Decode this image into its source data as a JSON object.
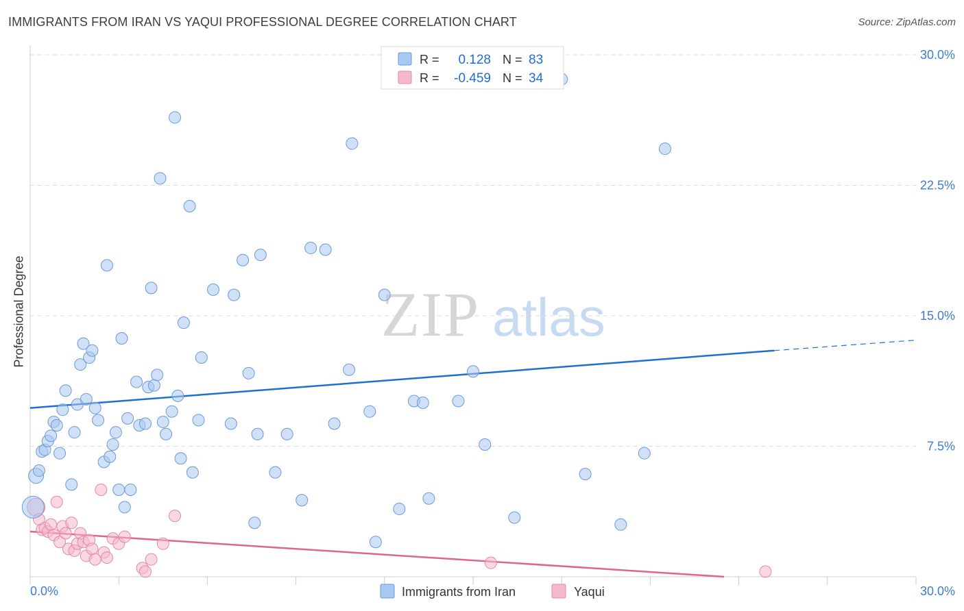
{
  "header": {
    "title": "IMMIGRANTS FROM IRAN VS YAQUI PROFESSIONAL DEGREE CORRELATION CHART",
    "source": "Source: ZipAtlas.com"
  },
  "watermark": {
    "part1": "ZIP",
    "part2": "atlas"
  },
  "colors": {
    "blue": "#1f6fd1",
    "blue_fill": "#a9c9f0",
    "pink": "#e0648c",
    "pink_fill": "#f6b8cb",
    "grid": "#dcdcdc",
    "axis_text": "#3e7bd0"
  },
  "legend": {
    "rows": [
      {
        "r_label": "R =",
        "r_value": "0.128",
        "n_label": "N =",
        "n_value": "83"
      },
      {
        "r_label": "R =",
        "r_value": "-0.459",
        "n_label": "N =",
        "n_value": "34"
      }
    ]
  },
  "bottom_legend": [
    {
      "label": "Immigrants from Iran"
    },
    {
      "label": "Yaqui"
    }
  ],
  "chart_data": {
    "type": "scatter",
    "title": "IMMIGRANTS FROM IRAN VS YAQUI PROFESSIONAL DEGREE CORRELATION CHART",
    "xlabel": "",
    "ylabel": "Professional Degree",
    "xlim": [
      0,
      30
    ],
    "ylim": [
      0,
      30
    ],
    "x_tick_labels": [
      "0.0%",
      "30.0%"
    ],
    "y_ticks": [
      7.5,
      15.0,
      22.5,
      30.0
    ],
    "y_tick_labels": [
      "7.5%",
      "15.0%",
      "22.5%",
      "30.0%"
    ],
    "series": [
      {
        "name": "Immigrants from Iran",
        "color": "blue",
        "R": 0.128,
        "N": 83,
        "trend": {
          "x0": 0,
          "y0": 9.7,
          "x1": 25.2,
          "y1": 13.0,
          "dash_to_x": 30,
          "dash_to_y": 13.6
        },
        "points": [
          [
            0.2,
            5.8
          ],
          [
            0.3,
            6.1
          ],
          [
            0.4,
            7.2
          ],
          [
            0.5,
            7.3
          ],
          [
            0.6,
            7.8
          ],
          [
            0.7,
            8.1
          ],
          [
            0.8,
            8.9
          ],
          [
            0.9,
            8.7
          ],
          [
            1.0,
            7.1
          ],
          [
            1.1,
            9.6
          ],
          [
            1.2,
            10.7
          ],
          [
            1.4,
            5.3
          ],
          [
            1.5,
            8.3
          ],
          [
            1.6,
            9.9
          ],
          [
            1.7,
            12.2
          ],
          [
            1.8,
            13.4
          ],
          [
            1.9,
            10.2
          ],
          [
            2.0,
            12.6
          ],
          [
            2.1,
            13.0
          ],
          [
            2.2,
            9.7
          ],
          [
            2.3,
            9.0
          ],
          [
            2.5,
            6.6
          ],
          [
            2.6,
            17.9
          ],
          [
            2.7,
            6.9
          ],
          [
            2.8,
            7.6
          ],
          [
            2.9,
            8.3
          ],
          [
            3.0,
            5.0
          ],
          [
            3.1,
            13.7
          ],
          [
            3.2,
            4.0
          ],
          [
            3.3,
            9.1
          ],
          [
            3.4,
            5.0
          ],
          [
            3.6,
            11.2
          ],
          [
            3.7,
            8.7
          ],
          [
            3.9,
            8.8
          ],
          [
            4.0,
            10.9
          ],
          [
            4.1,
            16.6
          ],
          [
            4.2,
            11.0
          ],
          [
            4.3,
            11.6
          ],
          [
            4.4,
            22.9
          ],
          [
            4.5,
            8.9
          ],
          [
            4.6,
            8.2
          ],
          [
            4.8,
            9.5
          ],
          [
            4.9,
            26.4
          ],
          [
            5.0,
            10.4
          ],
          [
            5.1,
            6.8
          ],
          [
            5.2,
            14.6
          ],
          [
            5.4,
            21.3
          ],
          [
            5.5,
            6.0
          ],
          [
            5.7,
            9.0
          ],
          [
            5.8,
            12.6
          ],
          [
            6.2,
            16.5
          ],
          [
            6.8,
            8.8
          ],
          [
            6.9,
            16.2
          ],
          [
            7.2,
            18.2
          ],
          [
            7.4,
            11.7
          ],
          [
            7.6,
            3.1
          ],
          [
            7.7,
            8.2
          ],
          [
            7.8,
            18.5
          ],
          [
            8.3,
            6.0
          ],
          [
            8.7,
            8.2
          ],
          [
            9.2,
            4.4
          ],
          [
            9.5,
            18.9
          ],
          [
            10.0,
            18.8
          ],
          [
            10.3,
            8.8
          ],
          [
            10.8,
            11.9
          ],
          [
            10.9,
            24.9
          ],
          [
            11.5,
            9.5
          ],
          [
            11.7,
            2.0
          ],
          [
            12.0,
            16.2
          ],
          [
            12.5,
            3.9
          ],
          [
            13.0,
            10.1
          ],
          [
            13.3,
            10.0
          ],
          [
            13.5,
            4.5
          ],
          [
            14.5,
            10.1
          ],
          [
            15.0,
            11.8
          ],
          [
            15.4,
            7.6
          ],
          [
            16.4,
            3.4
          ],
          [
            18.0,
            28.6
          ],
          [
            18.8,
            5.9
          ],
          [
            20.0,
            3.0
          ],
          [
            20.8,
            7.1
          ],
          [
            21.5,
            24.6
          ],
          [
            0.1,
            4.0
          ]
        ]
      },
      {
        "name": "Yaqui",
        "color": "pink",
        "R": -0.459,
        "N": 34,
        "trend": {
          "x0": 0,
          "y0": 2.6,
          "x1": 23.5,
          "y1": 0.0
        },
        "points": [
          [
            0.2,
            4.0
          ],
          [
            0.3,
            3.3
          ],
          [
            0.4,
            2.7
          ],
          [
            0.5,
            2.8
          ],
          [
            0.6,
            2.6
          ],
          [
            0.7,
            3.0
          ],
          [
            0.8,
            2.4
          ],
          [
            0.9,
            4.3
          ],
          [
            1.0,
            2.0
          ],
          [
            1.1,
            2.9
          ],
          [
            1.2,
            2.5
          ],
          [
            1.3,
            1.6
          ],
          [
            1.4,
            3.1
          ],
          [
            1.5,
            1.5
          ],
          [
            1.6,
            1.9
          ],
          [
            1.7,
            2.5
          ],
          [
            1.8,
            2.0
          ],
          [
            1.9,
            1.2
          ],
          [
            2.0,
            2.1
          ],
          [
            2.1,
            1.6
          ],
          [
            2.2,
            1.0
          ],
          [
            2.4,
            5.0
          ],
          [
            2.5,
            1.4
          ],
          [
            2.6,
            1.1
          ],
          [
            2.8,
            2.2
          ],
          [
            3.0,
            1.9
          ],
          [
            3.2,
            2.3
          ],
          [
            3.8,
            0.5
          ],
          [
            3.9,
            0.3
          ],
          [
            4.1,
            1.0
          ],
          [
            4.5,
            1.9
          ],
          [
            4.9,
            3.5
          ],
          [
            15.6,
            0.8
          ],
          [
            24.9,
            0.3
          ]
        ]
      }
    ]
  }
}
